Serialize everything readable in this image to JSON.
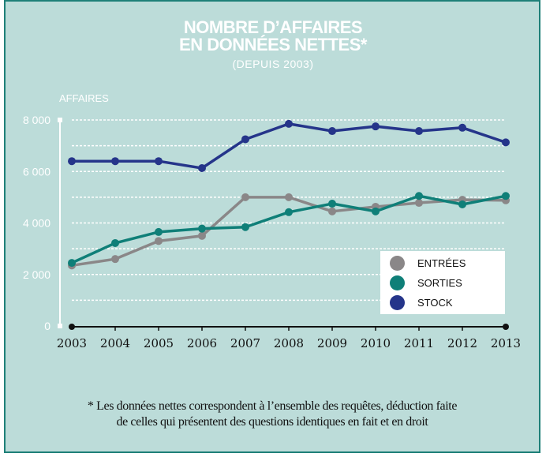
{
  "header": {
    "title_line1": "NOMBRE D’AFFAIRES",
    "title_line2": "EN DONNÉES NETTES*",
    "subtitle": "(DEPUIS 2003)"
  },
  "footnote": {
    "line1": "* Les données nettes correspondent à l’ensemble des requêtes, déduction faite",
    "line2": "de celles qui présentent des questions identiques en fait et en droit"
  },
  "chart_data": {
    "type": "line",
    "title": "NOMBRE D’AFFAIRES EN DONNÉES NETTES*",
    "subtitle": "(DEPUIS 2003)",
    "xlabel": "",
    "ylabel": "AFFAIRES",
    "x": [
      "2003",
      "2004",
      "2005",
      "2006",
      "2007",
      "2008",
      "2009",
      "2010",
      "2011",
      "2012",
      "2013"
    ],
    "ylim": [
      0,
      8000
    ],
    "yticks": [
      0,
      2000,
      4000,
      6000,
      8000
    ],
    "ytick_labels": [
      "0",
      "2 000",
      "4 000",
      "6 000",
      "8 000"
    ],
    "grid": true,
    "grid_step": 1000,
    "legend_position": "right",
    "series": [
      {
        "name": "ENTRÉES",
        "color": "#8a8788",
        "values": [
          2350,
          2600,
          3300,
          3500,
          5000,
          5000,
          4450,
          4630,
          4780,
          4900,
          4880
        ]
      },
      {
        "name": "SORTIES",
        "color": "#0f7f78",
        "values": [
          2450,
          3220,
          3650,
          3780,
          3840,
          4420,
          4750,
          4450,
          5050,
          4720,
          5050
        ]
      },
      {
        "name": "STOCK",
        "color": "#25358a",
        "values": [
          6400,
          6400,
          6400,
          6130,
          7250,
          7850,
          7570,
          7750,
          7570,
          7700,
          7130
        ]
      }
    ]
  }
}
